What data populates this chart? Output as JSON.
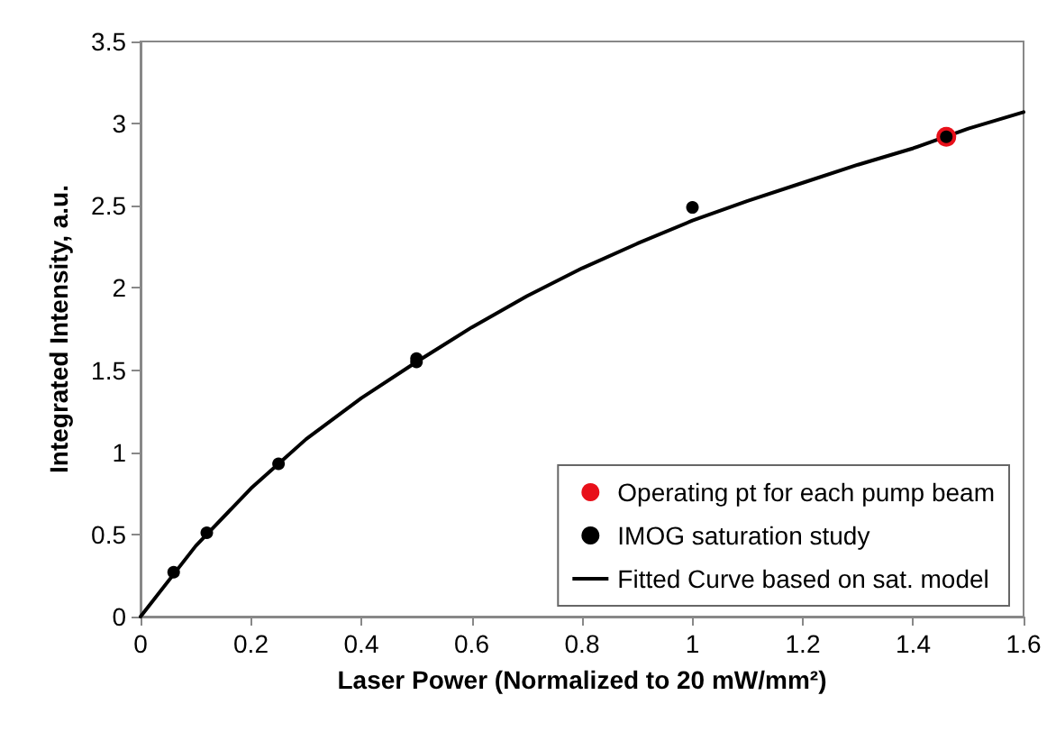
{
  "chart_data": {
    "type": "scatter",
    "xlabel": "Laser Power (Normalized to 20 mW/mm²)",
    "ylabel": "Integrated Intensity, a.u.",
    "xlim": [
      0,
      1.6
    ],
    "xticks": [
      0,
      0.2,
      0.4,
      0.6,
      0.8,
      1,
      1.2,
      1.4,
      1.6
    ],
    "ylim": [
      0,
      3.5
    ],
    "yticks": [
      0,
      0.5,
      1,
      1.5,
      2,
      2.5,
      3,
      3.5
    ],
    "grid": false,
    "legend": "bottom right",
    "marker": "circle",
    "series": [
      {
        "name": "Operating pt for each pump beam",
        "color": "#e8101a",
        "x": [
          1.46
        ],
        "values": [
          2.92
        ]
      },
      {
        "name": "IMOG saturation study",
        "color": "#000000",
        "x": [
          0.06,
          0.12,
          0.25,
          0.5,
          0.5,
          1.0,
          1.46
        ],
        "values": [
          0.27,
          0.51,
          0.93,
          1.55,
          1.57,
          2.49,
          2.92
        ]
      },
      {
        "name": "Fitted Curve based on sat. model",
        "type": "line",
        "marker": "none",
        "line_style": "solid",
        "color": "#000000",
        "x": [
          0,
          0.1,
          0.2,
          0.3,
          0.4,
          0.5,
          0.6,
          0.7,
          0.8,
          0.9,
          1.0,
          1.1,
          1.2,
          1.3,
          1.4,
          1.5,
          1.6
        ],
        "values": [
          0,
          0.43,
          0.78,
          1.08,
          1.33,
          1.55,
          1.76,
          1.95,
          2.12,
          2.27,
          2.41,
          2.53,
          2.64,
          2.75,
          2.85,
          2.97,
          3.07
        ]
      }
    ]
  }
}
